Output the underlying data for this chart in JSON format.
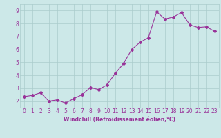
{
  "x": [
    0,
    1,
    2,
    3,
    4,
    5,
    6,
    7,
    8,
    9,
    10,
    11,
    12,
    13,
    14,
    15,
    16,
    17,
    18,
    19,
    20,
    21,
    22,
    23
  ],
  "y": [
    2.35,
    2.45,
    2.65,
    2.0,
    2.1,
    1.85,
    2.2,
    2.5,
    3.05,
    2.9,
    3.25,
    4.15,
    4.9,
    6.0,
    6.55,
    6.9,
    8.9,
    8.35,
    8.5,
    8.85,
    7.9,
    7.7,
    7.75,
    7.4
  ],
  "line_color": "#993399",
  "marker": "D",
  "marker_size": 2,
  "bg_color": "#cce8e8",
  "grid_color": "#aacccc",
  "xlabel": "Windchill (Refroidissement éolien,°C)",
  "xlim": [
    -0.5,
    23.5
  ],
  "ylim": [
    1.5,
    9.5
  ],
  "yticks": [
    2,
    3,
    4,
    5,
    6,
    7,
    8,
    9
  ],
  "xticks": [
    0,
    1,
    2,
    3,
    4,
    5,
    6,
    7,
    8,
    9,
    10,
    11,
    12,
    13,
    14,
    15,
    16,
    17,
    18,
    19,
    20,
    21,
    22,
    23
  ],
  "tick_color": "#993399",
  "label_color": "#993399",
  "tick_fontsize": 5.5,
  "xlabel_fontsize": 5.5
}
